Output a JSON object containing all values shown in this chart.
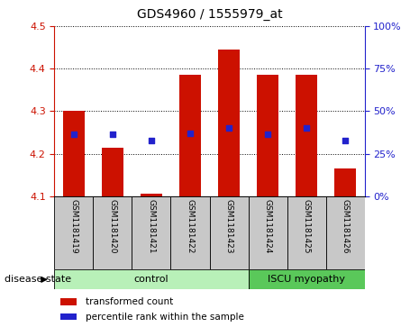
{
  "title": "GDS4960 / 1555979_at",
  "samples": [
    "GSM1181419",
    "GSM1181420",
    "GSM1181421",
    "GSM1181422",
    "GSM1181423",
    "GSM1181424",
    "GSM1181425",
    "GSM1181426"
  ],
  "bar_values": [
    4.3,
    4.215,
    4.105,
    4.385,
    4.445,
    4.385,
    4.385,
    4.165
  ],
  "dot_values": [
    4.245,
    4.245,
    4.23,
    4.247,
    4.26,
    4.245,
    4.26,
    4.23
  ],
  "y_min": 4.1,
  "y_max": 4.5,
  "bar_color": "#cc1100",
  "dot_color": "#2222cc",
  "control_label": "control",
  "disease_label": "ISCU myopathy",
  "disease_state_label": "disease state",
  "legend_bar_label": "transformed count",
  "legend_dot_label": "percentile rank within the sample",
  "left_axis_color": "#cc1100",
  "right_axis_color": "#2222cc",
  "right_ytick_vals": [
    0,
    25,
    50,
    75,
    100
  ],
  "left_ytick_vals": [
    4.1,
    4.2,
    4.3,
    4.4,
    4.5
  ],
  "cell_bg": "#c8c8c8",
  "control_bg": "#b8f0b8",
  "disease_bg": "#5ac85a",
  "n_control": 5,
  "n_disease": 3
}
